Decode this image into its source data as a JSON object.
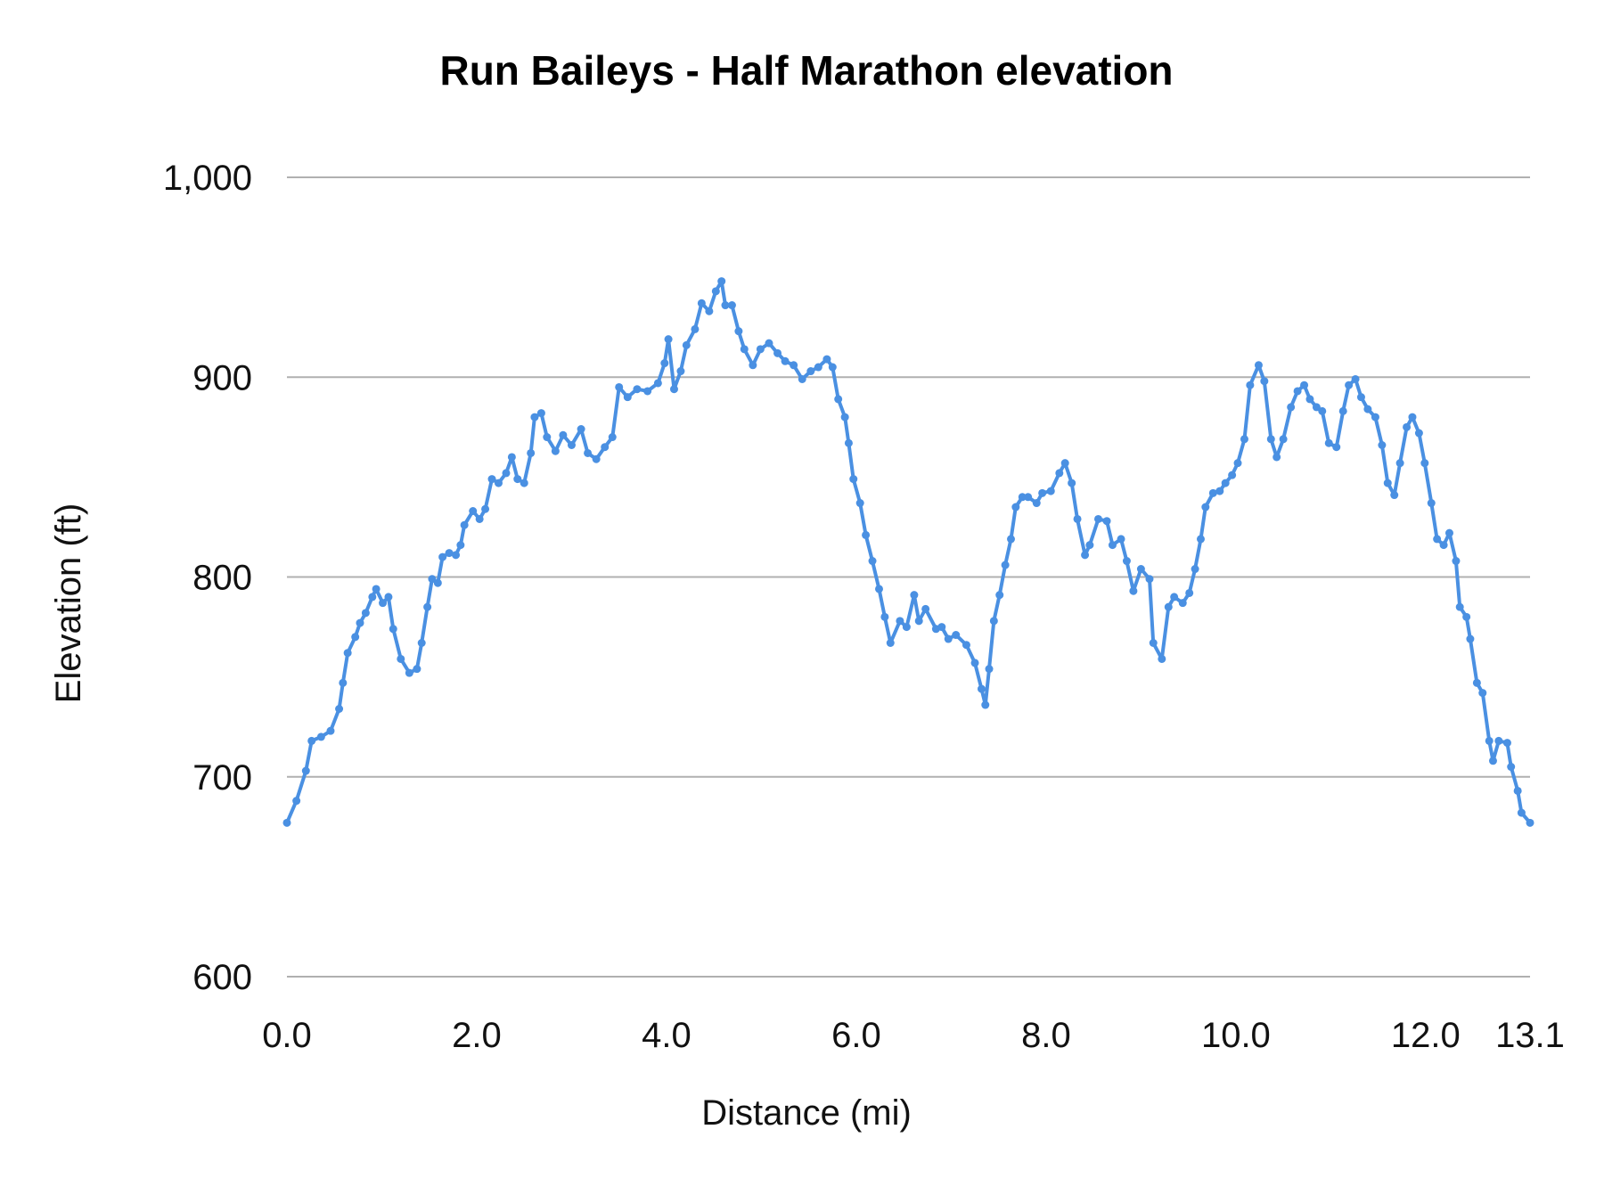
{
  "chart_data": {
    "type": "line",
    "title": "Run Baileys - Half Marathon elevation",
    "xlabel": "Distance (mi)",
    "ylabel": "Elevation (ft)",
    "xlim": [
      0,
      13.1
    ],
    "ylim": [
      600,
      1000
    ],
    "x_ticks": [
      0,
      2,
      4,
      6,
      8,
      10,
      12,
      13.1
    ],
    "x_tick_labels": [
      "0.0",
      "2.0",
      "4.0",
      "6.0",
      "8.0",
      "10.0",
      "12.0",
      "13.1"
    ],
    "y_ticks": [
      600,
      700,
      800,
      900,
      1000
    ],
    "y_tick_labels": [
      "600",
      "700",
      "800",
      "900",
      "1,000"
    ],
    "grid": "horizontal",
    "line_color": "#4a90e2",
    "grid_color": "#b0b0b0",
    "markers": true,
    "x": [
      0.0,
      0.1,
      0.2,
      0.26,
      0.36,
      0.46,
      0.55,
      0.59,
      0.64,
      0.72,
      0.77,
      0.83,
      0.9,
      0.94,
      1.01,
      1.07,
      1.12,
      1.2,
      1.29,
      1.37,
      1.42,
      1.48,
      1.53,
      1.59,
      1.64,
      1.71,
      1.78,
      1.83,
      1.87,
      1.96,
      2.03,
      2.09,
      2.16,
      2.23,
      2.31,
      2.37,
      2.43,
      2.5,
      2.57,
      2.61,
      2.68,
      2.74,
      2.83,
      2.91,
      3.0,
      3.1,
      3.17,
      3.26,
      3.35,
      3.43,
      3.5,
      3.59,
      3.69,
      3.8,
      3.91,
      3.98,
      4.02,
      4.08,
      4.15,
      4.21,
      4.3,
      4.37,
      4.45,
      4.52,
      4.58,
      4.62,
      4.69,
      4.76,
      4.82,
      4.91,
      4.99,
      5.08,
      5.17,
      5.25,
      5.34,
      5.43,
      5.52,
      5.6,
      5.69,
      5.75,
      5.81,
      5.88,
      5.92,
      5.97,
      6.04,
      6.1,
      6.17,
      6.24,
      6.3,
      6.36,
      6.46,
      6.53,
      6.61,
      6.66,
      6.73,
      6.84,
      6.9,
      6.97,
      7.05,
      7.16,
      7.25,
      7.32,
      7.36,
      7.4,
      7.45,
      7.51,
      7.57,
      7.63,
      7.68,
      7.75,
      7.81,
      7.9,
      7.96,
      8.05,
      8.14,
      8.2,
      8.27,
      8.33,
      8.41,
      8.46,
      8.55,
      8.64,
      8.7,
      8.79,
      8.85,
      8.92,
      9.0,
      9.09,
      9.13,
      9.22,
      9.29,
      9.35,
      9.44,
      9.51,
      9.57,
      9.63,
      9.68,
      9.76,
      9.83,
      9.89,
      9.96,
      10.02,
      10.09,
      10.15,
      10.24,
      10.3,
      10.37,
      10.43,
      10.5,
      10.58,
      10.65,
      10.72,
      10.78,
      10.85,
      10.91,
      10.98,
      11.06,
      11.13,
      11.19,
      11.26,
      11.32,
      11.39,
      11.47,
      11.54,
      11.6,
      11.67,
      11.73,
      11.8,
      11.86,
      11.93,
      11.99,
      12.06,
      12.12,
      12.19,
      12.25,
      12.32,
      12.36,
      12.43,
      12.47,
      12.54,
      12.6,
      12.67,
      12.71,
      12.77,
      12.86,
      12.9,
      12.97,
      13.01,
      13.1
    ],
    "y": [
      677,
      688,
      703,
      718,
      720,
      723,
      734,
      747,
      762,
      770,
      777,
      782,
      790,
      794,
      787,
      790,
      774,
      759,
      752,
      754,
      767,
      785,
      799,
      797,
      810,
      812,
      811,
      816,
      826,
      833,
      829,
      834,
      849,
      847,
      852,
      860,
      849,
      847,
      862,
      880,
      882,
      870,
      863,
      871,
      866,
      874,
      862,
      859,
      865,
      870,
      895,
      890,
      894,
      893,
      897,
      907,
      919,
      894,
      903,
      916,
      924,
      937,
      933,
      943,
      948,
      936,
      936,
      923,
      914,
      906,
      914,
      917,
      912,
      908,
      906,
      899,
      903,
      905,
      909,
      905,
      889,
      880,
      867,
      849,
      837,
      821,
      808,
      794,
      780,
      767,
      778,
      775,
      791,
      778,
      784,
      774,
      775,
      769,
      771,
      766,
      757,
      744,
      736,
      754,
      778,
      791,
      806,
      819,
      835,
      840,
      840,
      837,
      842,
      843,
      852,
      857,
      847,
      829,
      811,
      816,
      829,
      828,
      816,
      819,
      808,
      793,
      804,
      799,
      767,
      759,
      785,
      790,
      787,
      792,
      804,
      819,
      835,
      842,
      843,
      847,
      851,
      857,
      869,
      896,
      906,
      898,
      869,
      860,
      869,
      885,
      893,
      896,
      889,
      885,
      883,
      867,
      865,
      883,
      896,
      899,
      890,
      884,
      880,
      866,
      847,
      841,
      857,
      875,
      880,
      872,
      857,
      837,
      819,
      816,
      822,
      808,
      785,
      780,
      769,
      747,
      742,
      718,
      708,
      718,
      717,
      705,
      693,
      682,
      677
    ]
  }
}
